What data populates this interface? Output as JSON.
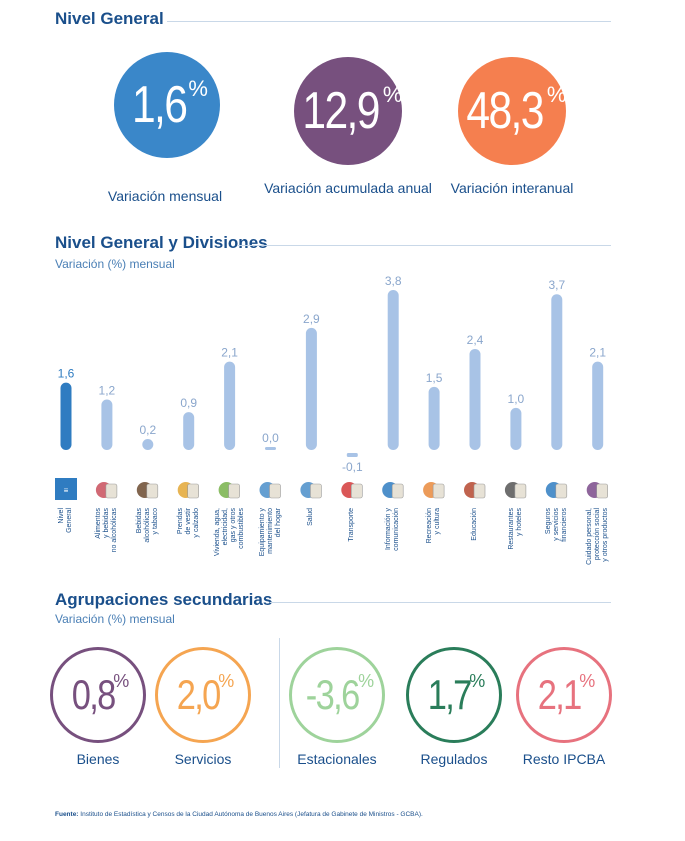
{
  "nivel_general": {
    "title": "Nivel General",
    "cards": [
      {
        "value": "1,6",
        "unit": "%",
        "label": "Variación mensual",
        "color": "#3a87c9"
      },
      {
        "value": "12,9",
        "unit": "%",
        "label": "Variación acumulada anual",
        "color": "#77507e"
      },
      {
        "value": "48,3",
        "unit": "%",
        "label": "Variación interanual",
        "color": "#f57f4f"
      }
    ]
  },
  "divisiones": {
    "title": "Nivel General y Divisiones",
    "subtitle": "Variación (%) mensual"
  },
  "chart_data": {
    "type": "bar",
    "categories": [
      "Nivel\nGeneral",
      "Alimentos\ny bebidas\nno alcohólicas",
      "Bebidas\nalcohólicas\ny tabaco",
      "Prendas\nde vestir\ny calzado",
      "Vivienda, agua,\nelectricidad,\ngas y otros\ncombustibles",
      "Equipamiento y\nmantenimiento\ndel hogar",
      "Salud",
      "Transporte",
      "Información y\ncomunicación",
      "Recreación\ny cultura",
      "Educación",
      "Restaurantes\ny hoteles",
      "Seguros\ny servicios\nfinancieros",
      "Cuidado personal,\nprotección social\ny otros productos"
    ],
    "values": [
      1.6,
      1.2,
      0.2,
      0.9,
      2.1,
      0.0,
      2.9,
      -0.1,
      3.8,
      1.5,
      2.4,
      1.0,
      3.7,
      2.1
    ],
    "value_labels": [
      "1,6",
      "1,2",
      "0,2",
      "0,9",
      "2,1",
      "0,0",
      "2,9",
      "-0,1",
      "3,8",
      "1,5",
      "2,4",
      "1,0",
      "3,7",
      "2,1"
    ],
    "highlight_color": "#2f7cc1",
    "bar_color": "#a8c3e6",
    "icons": [
      "ipcba-logo-icon",
      "food-icon",
      "bottles-icon",
      "jacket-icon",
      "house-icon",
      "washing-machine-icon",
      "doctor-icon",
      "car-icon",
      "computer-icon",
      "theater-masks-icon",
      "school-icon",
      "restaurant-icon",
      "bank-icon",
      "personal-care-icon"
    ]
  },
  "agrupaciones": {
    "title": "Agrupaciones secundarias",
    "subtitle": "Variación (%) mensual",
    "items": [
      {
        "value": "0,8",
        "unit": "%",
        "label": "Bienes",
        "color": "#77507e"
      },
      {
        "value": "2,0",
        "unit": "%",
        "label": "Servicios",
        "color": "#f5a551"
      },
      {
        "value": "-3,6",
        "unit": "%",
        "label": "Estacionales",
        "color": "#9ed39b"
      },
      {
        "value": "1,7",
        "unit": "%",
        "label": "Regulados",
        "color": "#2a7d5a"
      },
      {
        "value": "2,1",
        "unit": "%",
        "label": "Resto IPCBA",
        "color": "#e7727e"
      }
    ]
  },
  "footer": {
    "label": "Fuente:",
    "text": " Instituto de Estadística y Censos de la Ciudad Autónoma de Buenos Aires (Jefatura de Gabinete de Ministros - GCBA)."
  }
}
